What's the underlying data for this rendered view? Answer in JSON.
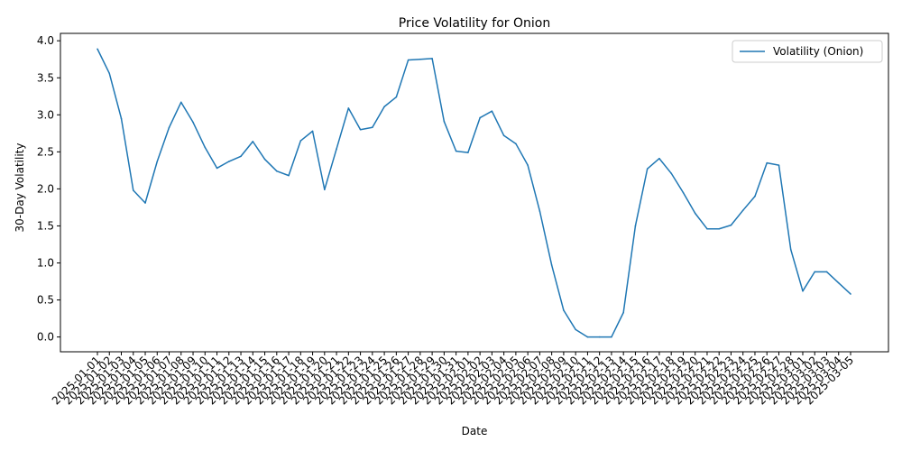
{
  "chart_data": {
    "type": "line",
    "title": "Price Volatility for Onion",
    "xlabel": "Date",
    "ylabel": "30-Day Volatility",
    "ylim": [
      -0.2,
      4.1
    ],
    "yticks": [
      "0.0",
      "0.5",
      "1.0",
      "1.5",
      "2.0",
      "2.5",
      "3.0",
      "3.5",
      "4.0"
    ],
    "grid": false,
    "legend_position": "top-right",
    "categories": [
      "2025-01-01",
      "2025-01-02",
      "2025-01-03",
      "2025-01-04",
      "2025-01-05",
      "2025-01-06",
      "2025-01-07",
      "2025-01-08",
      "2025-01-09",
      "2025-01-10",
      "2025-01-11",
      "2025-01-12",
      "2025-01-13",
      "2025-01-14",
      "2025-01-15",
      "2025-01-16",
      "2025-01-17",
      "2025-01-18",
      "2025-01-19",
      "2025-01-20",
      "2025-01-21",
      "2025-01-22",
      "2025-01-23",
      "2025-01-24",
      "2025-01-25",
      "2025-01-26",
      "2025-01-27",
      "2025-01-28",
      "2025-01-29",
      "2025-01-30",
      "2025-01-31",
      "2025-02-01",
      "2025-02-02",
      "2025-02-03",
      "2025-02-04",
      "2025-02-05",
      "2025-02-06",
      "2025-02-07",
      "2025-02-08",
      "2025-02-09",
      "2025-02-10",
      "2025-02-11",
      "2025-02-12",
      "2025-02-13",
      "2025-02-14",
      "2025-02-15",
      "2025-02-16",
      "2025-02-17",
      "2025-02-18",
      "2025-02-19",
      "2025-02-20",
      "2025-02-21",
      "2025-02-22",
      "2025-02-23",
      "2025-02-24",
      "2025-02-25",
      "2025-02-26",
      "2025-02-27",
      "2025-02-28",
      "2025-03-01",
      "2025-03-02",
      "2025-03-03",
      "2025-03-04",
      "2025-03-05"
    ],
    "series": [
      {
        "name": "Volatility (Onion)",
        "color": "#1f77b4",
        "values": [
          3.89,
          3.56,
          2.95,
          1.98,
          1.81,
          2.37,
          2.83,
          3.17,
          2.9,
          2.56,
          2.28,
          2.37,
          2.44,
          2.64,
          2.4,
          2.24,
          2.18,
          2.65,
          2.78,
          1.99,
          2.54,
          3.09,
          2.8,
          2.83,
          3.11,
          3.24,
          3.74,
          3.75,
          3.76,
          2.91,
          2.51,
          2.49,
          2.96,
          3.05,
          2.72,
          2.61,
          2.32,
          1.7,
          0.97,
          0.36,
          0.1,
          0.0,
          0.0,
          0.0,
          0.33,
          1.5,
          2.27,
          2.41,
          2.21,
          1.95,
          1.67,
          1.46,
          1.46,
          1.51,
          1.71,
          1.9,
          2.35,
          2.32,
          1.18,
          0.62,
          0.88,
          0.88,
          0.73,
          0.58
        ]
      }
    ]
  }
}
